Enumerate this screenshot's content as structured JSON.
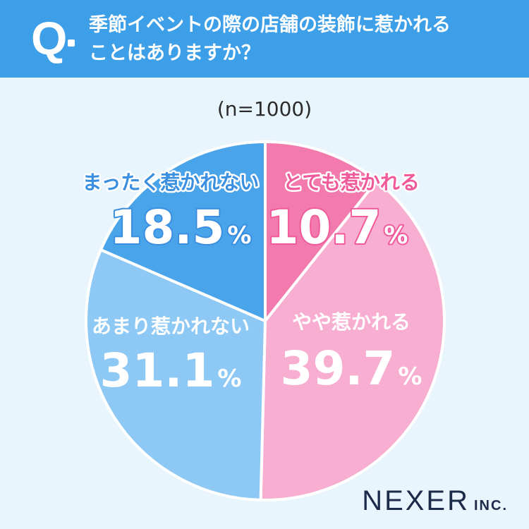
{
  "header": {
    "q_label": "Q",
    "question_line1": "季節イベントの際の店舗の装飾に惹かれる",
    "question_line2": "ことはありますか？",
    "bg_color": "#3d9fe8"
  },
  "sample_label": "(n=1000)",
  "brand": {
    "main": "NEXER",
    "sub": "INC."
  },
  "chart_data": {
    "type": "pie",
    "start": "12 o'clock",
    "direction": "clockwise",
    "slices": [
      {
        "label": "とても惹かれる",
        "value": 10.7,
        "display": "10.7",
        "unit": "%",
        "color": "#f27aad",
        "label_color": "#f05a9a",
        "value_color": "#ffffff",
        "outline": "#f05a9a"
      },
      {
        "label": "やや惹かれる",
        "value": 39.7,
        "display": "39.7",
        "unit": "%",
        "color": "#f8aed0",
        "label_color": "#ffffff",
        "value_color": "#ffffff",
        "outline": ""
      },
      {
        "label": "あまり惹かれない",
        "value": 31.1,
        "display": "31.1",
        "unit": "%",
        "color": "#8ec8f4",
        "label_color": "#ffffff",
        "value_color": "#ffffff",
        "outline": ""
      },
      {
        "label": "まったく惹かれない",
        "value": 18.5,
        "display": "18.5",
        "unit": "%",
        "color": "#4aa4ea",
        "label_color": "#3a8fe0",
        "value_color": "#ffffff",
        "outline": "#3a8fe0"
      }
    ]
  }
}
